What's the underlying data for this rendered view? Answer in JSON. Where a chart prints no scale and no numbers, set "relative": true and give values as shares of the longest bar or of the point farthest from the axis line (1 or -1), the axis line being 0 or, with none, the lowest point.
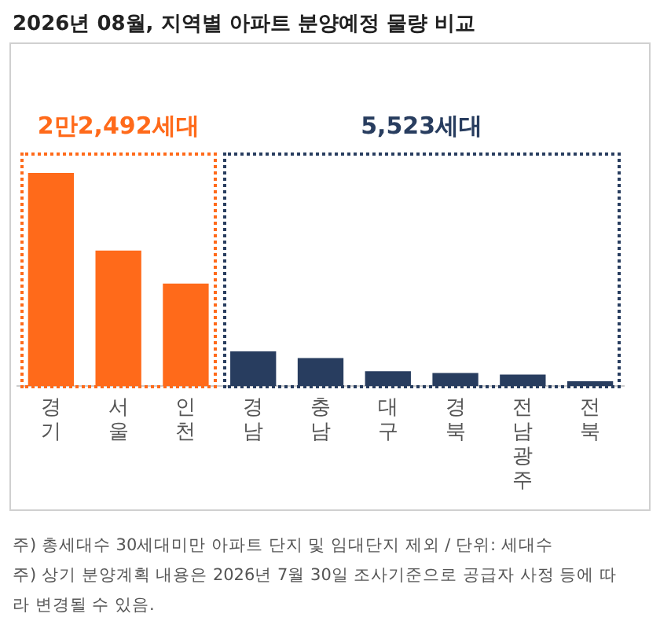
{
  "chart_data": {
    "type": "bar",
    "title": "2026년 08월, 지역별 아파트 분양예정 물량 비교",
    "relative": true,
    "categories": [
      "경기",
      "서울",
      "인천",
      "경남",
      "충남",
      "대구",
      "경북",
      "전남광주",
      "전북"
    ],
    "values": [
      1,
      0.636,
      0.481,
      0.163,
      0.132,
      0.07,
      0.062,
      0.054,
      0.023
    ],
    "colors": [
      "#ff6a1a",
      "#ff6a1a",
      "#ff6a1a",
      "#283d5f",
      "#283d5f",
      "#283d5f",
      "#283d5f",
      "#283d5f",
      "#283d5f"
    ],
    "annotations": [
      "2만2,492세대",
      "5,523세대",
      "주) 총세대수 30세대미만 아파트  단지 및 임대단지 제외 / 단위: 세대수",
      "주) 상기 분양계획 내용은 2026년 7월 30일 조사기준으로 공급자 사정 등에 따라 변경될 수 있음."
    ],
    "grid": false,
    "legend": false
  }
}
